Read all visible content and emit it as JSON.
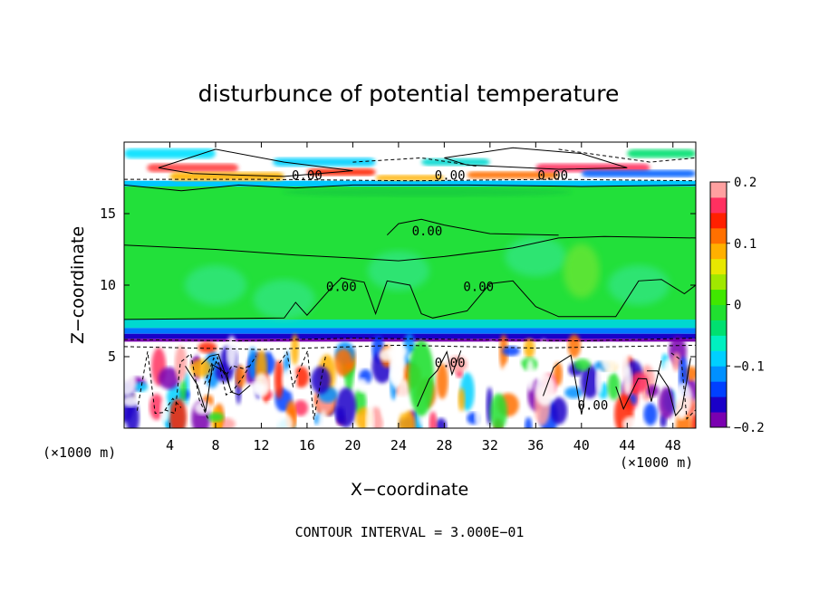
{
  "chart_data": {
    "type": "heatmap",
    "title": "disturbunce of potential temperature",
    "xlabel": "X−coordinate",
    "ylabel": "Z−coordinate",
    "x_unit_left": "(×1000 m)",
    "x_unit_right": "(×1000 m)",
    "footer": "CONTOUR INTERVAL = 3.000E−01",
    "xlim": [
      0,
      50
    ],
    "ylim": [
      0,
      20
    ],
    "x_ticks": [
      4,
      8,
      12,
      16,
      20,
      24,
      28,
      32,
      36,
      40,
      44,
      48
    ],
    "x_tick_labels": [
      "4",
      "8",
      "12",
      "16",
      "20",
      "24",
      "28",
      "32",
      "36",
      "40",
      "44",
      "48"
    ],
    "y_ticks": [
      5,
      10,
      15
    ],
    "y_tick_labels": [
      "5",
      "10",
      "15"
    ],
    "contour_labels": [
      {
        "text": "0.00",
        "x": 16.0,
        "y": 17.7
      },
      {
        "text": "0.00",
        "x": 28.5,
        "y": 17.7
      },
      {
        "text": "0.00",
        "x": 37.5,
        "y": 17.7
      },
      {
        "text": "0.00",
        "x": 26.5,
        "y": 13.8
      },
      {
        "text": "0.00",
        "x": 19.0,
        "y": 9.9
      },
      {
        "text": "0.00",
        "x": 31.0,
        "y": 9.9
      },
      {
        "text": "0.00",
        "x": 28.5,
        "y": 4.6
      },
      {
        "text": "0.00",
        "x": 41.0,
        "y": 1.6
      }
    ],
    "colorbar": {
      "min": -0.2,
      "max": 0.2,
      "ticks": [
        0.2,
        0.1,
        0,
        -0.1,
        -0.2
      ],
      "tick_labels": [
        "0.2",
        "0.1",
        "0",
        "−0.1",
        "−0.2"
      ],
      "colors": [
        "#7a00b0",
        "#1a00c8",
        "#0040ff",
        "#0090ff",
        "#00d0ff",
        "#00f0c0",
        "#00e070",
        "#20e030",
        "#40e800",
        "#a0e800",
        "#e8e800",
        "#ffb000",
        "#ff7000",
        "#ff2000",
        "#ff3060",
        "#ffa0a0"
      ]
    },
    "fields": {
      "upper_layer_z": [
        17,
        20
      ],
      "green_band_z": [
        7.5,
        17
      ],
      "turbulent_layer_z": [
        0,
        7.5
      ]
    },
    "colors": {
      "axis": "#000000",
      "background": "#ffffff"
    }
  }
}
